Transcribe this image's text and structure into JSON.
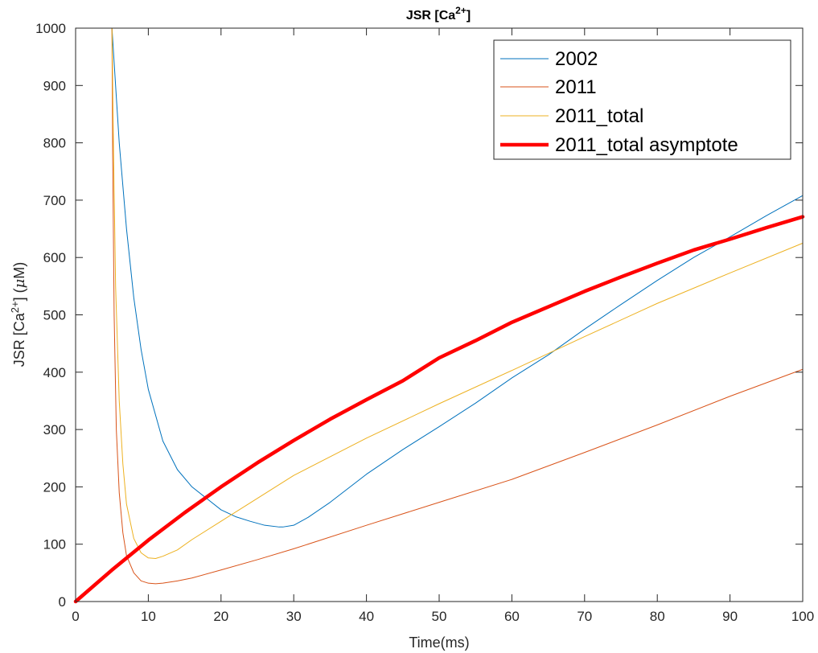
{
  "chart_data": {
    "type": "line",
    "title": "JSR [Ca",
    "title_sup": "2+",
    "title_end": "]",
    "xlabel": "Time(ms)",
    "ylabel_parts": {
      "pre": "JSR [Ca",
      "sup": "2+",
      "post": "] (",
      "mu": "μ",
      "unit": "M)"
    },
    "xlim": [
      0,
      100
    ],
    "ylim": [
      0,
      1000
    ],
    "xticks": [
      0,
      10,
      20,
      30,
      40,
      50,
      60,
      70,
      80,
      90,
      100
    ],
    "yticks": [
      0,
      100,
      200,
      300,
      400,
      500,
      600,
      700,
      800,
      900,
      1000
    ],
    "xtick_labels": [
      "0",
      "10",
      "20",
      "30",
      "40",
      "50",
      "60",
      "70",
      "80",
      "90",
      "100"
    ],
    "ytick_labels": [
      "0",
      "100",
      "200",
      "300",
      "400",
      "500",
      "600",
      "700",
      "800",
      "900",
      "1000"
    ],
    "grid": false,
    "legend_position": "top-right",
    "series": [
      {
        "name": "2002",
        "color": "#0072BD",
        "width": "thin",
        "x": [
          0,
          4.8,
          5.0,
          5.3,
          6,
          7,
          8,
          9,
          10,
          12,
          14,
          16,
          18,
          20,
          22,
          24,
          26,
          28,
          28.5,
          30,
          32,
          35,
          40,
          45,
          50,
          55,
          60,
          65,
          70,
          75,
          80,
          85,
          90,
          95,
          100
        ],
        "y": [
          1000,
          1000,
          1000,
          940,
          800,
          650,
          530,
          440,
          370,
          280,
          230,
          200,
          180,
          160,
          148,
          140,
          133,
          130,
          130,
          133,
          147,
          173,
          222,
          265,
          305,
          346,
          390,
          430,
          475,
          518,
          560,
          600,
          636,
          673,
          708
        ]
      },
      {
        "name": "2011",
        "color": "#D95319",
        "width": "thin",
        "x": [
          0,
          4.8,
          5.0,
          5.1,
          5.3,
          5.6,
          6,
          6.5,
          7,
          8,
          9,
          10,
          11,
          12,
          14,
          16,
          20,
          25,
          30,
          40,
          50,
          60,
          70,
          80,
          90,
          100
        ],
        "y": [
          1000,
          1000,
          1000,
          780,
          500,
          300,
          190,
          120,
          80,
          50,
          36,
          32,
          31,
          32,
          36,
          41,
          55,
          73,
          92,
          133,
          173,
          213,
          260,
          308,
          358,
          405
        ]
      },
      {
        "name": "2011_total",
        "color": "#EDB120",
        "width": "thin",
        "x": [
          0,
          4.8,
          5.0,
          5.2,
          5.5,
          6,
          6.5,
          7,
          8,
          9,
          10,
          11,
          12,
          14,
          16,
          20,
          25,
          30,
          40,
          50,
          60,
          70,
          80,
          90,
          100
        ],
        "y": [
          1000,
          1000,
          1000,
          800,
          550,
          350,
          240,
          170,
          110,
          85,
          76,
          75,
          79,
          90,
          108,
          140,
          180,
          220,
          285,
          345,
          403,
          462,
          520,
          573,
          625
        ]
      },
      {
        "name": "2011_total asymptote",
        "color": "#FF0000",
        "width": "thick",
        "x": [
          0,
          5,
          10,
          15,
          20,
          25,
          30,
          35,
          40,
          45,
          50,
          55,
          60,
          65,
          70,
          75,
          80,
          85,
          90,
          95,
          100
        ],
        "y": [
          0,
          55,
          107,
          155,
          200,
          242,
          281,
          318,
          352,
          385,
          425,
          455,
          487,
          514,
          541,
          566,
          590,
          613,
          632,
          652,
          671
        ]
      }
    ]
  }
}
